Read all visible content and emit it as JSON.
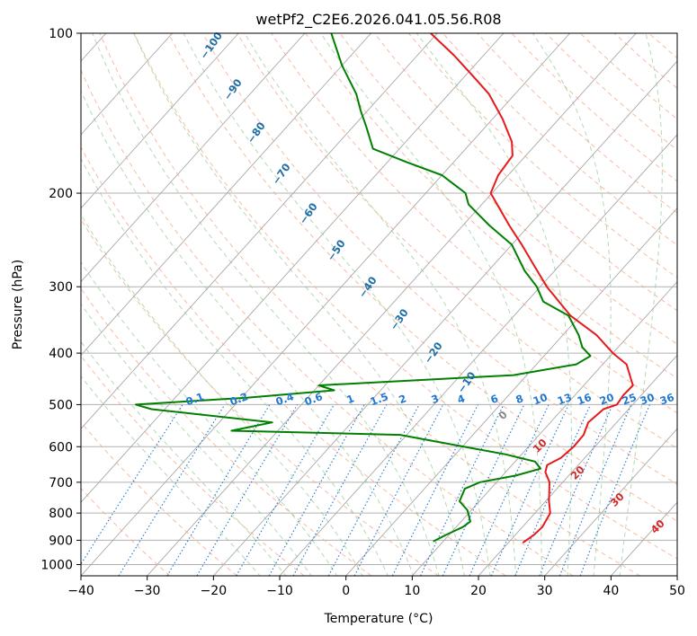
{
  "chart_data": {
    "type": "line",
    "subtype": "skew-t log-p",
    "title": "wetPf2_C2E6.2026.041.05.56.R08",
    "xlabel": "Temperature (°C)",
    "ylabel": "Pressure (hPa)",
    "xlim": [
      -40,
      50
    ],
    "ylim": [
      1050,
      100
    ],
    "y_scale": "log",
    "grid": true,
    "x_ticks": [
      -40,
      -30,
      -20,
      -10,
      0,
      10,
      20,
      30,
      40,
      50
    ],
    "x_tick_labels": [
      "−40",
      "−30",
      "−20",
      "−10",
      "0",
      "10",
      "20",
      "30",
      "40",
      "50"
    ],
    "y_ticks": [
      100,
      200,
      300,
      400,
      500,
      600,
      700,
      800,
      900,
      1000
    ],
    "y_tick_labels": [
      "100",
      "200",
      "300",
      "400",
      "500",
      "600",
      "700",
      "800",
      "900",
      "1000"
    ],
    "series": [
      {
        "role": "temperature",
        "color": "#e41a1c",
        "points": [
          [
            910,
            22.2
          ],
          [
            880,
            22.8
          ],
          [
            850,
            23.0
          ],
          [
            800,
            22.3
          ],
          [
            760,
            20.5
          ],
          [
            700,
            18.0
          ],
          [
            670,
            16.0
          ],
          [
            650,
            15.3
          ],
          [
            630,
            16.4
          ],
          [
            600,
            16.8
          ],
          [
            570,
            16.7
          ],
          [
            540,
            15.7
          ],
          [
            510,
            16.2
          ],
          [
            500,
            17.6
          ],
          [
            480,
            17.3
          ],
          [
            460,
            17.4
          ],
          [
            420,
            13.6
          ],
          [
            400,
            10.0
          ],
          [
            370,
            5.1
          ],
          [
            340,
            -1.5
          ],
          [
            300,
            -9.0
          ],
          [
            270,
            -14.5
          ],
          [
            250,
            -18.5
          ],
          [
            230,
            -23.0
          ],
          [
            200,
            -30.2
          ],
          [
            185,
            -31.5
          ],
          [
            170,
            -32.0
          ],
          [
            160,
            -34.0
          ],
          [
            145,
            -38.5
          ],
          [
            130,
            -44.0
          ],
          [
            120,
            -49.0
          ],
          [
            110,
            -54.5
          ],
          [
            100,
            -61.0
          ]
        ]
      },
      {
        "role": "dewpoint",
        "color": "#008000",
        "points": [
          [
            905,
            8.5
          ],
          [
            880,
            9.5
          ],
          [
            850,
            11.0
          ],
          [
            830,
            11.4
          ],
          [
            790,
            9.4
          ],
          [
            760,
            7.0
          ],
          [
            720,
            6.1
          ],
          [
            700,
            7.5
          ],
          [
            680,
            12.0
          ],
          [
            660,
            14.8
          ],
          [
            640,
            13.0
          ],
          [
            620,
            7.5
          ],
          [
            590,
            -3.5
          ],
          [
            570,
            -11.0
          ],
          [
            560,
            -37.0
          ],
          [
            540,
            -32.0
          ],
          [
            510,
            -52.0
          ],
          [
            500,
            -55.0
          ],
          [
            485,
            -39.0
          ],
          [
            470,
            -27.0
          ],
          [
            460,
            -30.0
          ],
          [
            440,
            -2.0
          ],
          [
            420,
            6.0
          ],
          [
            405,
            7.0
          ],
          [
            390,
            4.6
          ],
          [
            370,
            2.4
          ],
          [
            340,
            -1.8
          ],
          [
            320,
            -7.5
          ],
          [
            300,
            -10.5
          ],
          [
            280,
            -14.5
          ],
          [
            250,
            -20.0
          ],
          [
            230,
            -26.0
          ],
          [
            210,
            -32.0
          ],
          [
            200,
            -34.0
          ],
          [
            185,
            -40.0
          ],
          [
            175,
            -47.0
          ],
          [
            165,
            -54.0
          ],
          [
            150,
            -58.0
          ],
          [
            140,
            -61.0
          ],
          [
            130,
            -64.0
          ],
          [
            115,
            -70.0
          ],
          [
            100,
            -76.0
          ]
        ]
      }
    ],
    "mixing_ratio_labels": [
      "0.1",
      "0.2",
      "0.4",
      "0.6",
      "1",
      "1.5",
      "2",
      "3",
      "4",
      "6",
      "8",
      "10",
      "13",
      "16",
      "20",
      "25",
      "30",
      "36"
    ],
    "moist_adiabat_labels": [
      "−100",
      "−90",
      "−80",
      "−70",
      "−60",
      "−50",
      "−40",
      "−30",
      "−20",
      "−10"
    ],
    "dry_adiabat_labels": [
      "0",
      "10",
      "20",
      "30",
      "40"
    ],
    "colors": {
      "temperature": "#e41a1c",
      "dewpoint": "#008000",
      "mixing_ratio": "#1f78d1",
      "moist_label": "#1f6fa8",
      "dry_label": "#d62728",
      "zero_label": "#888888"
    }
  }
}
